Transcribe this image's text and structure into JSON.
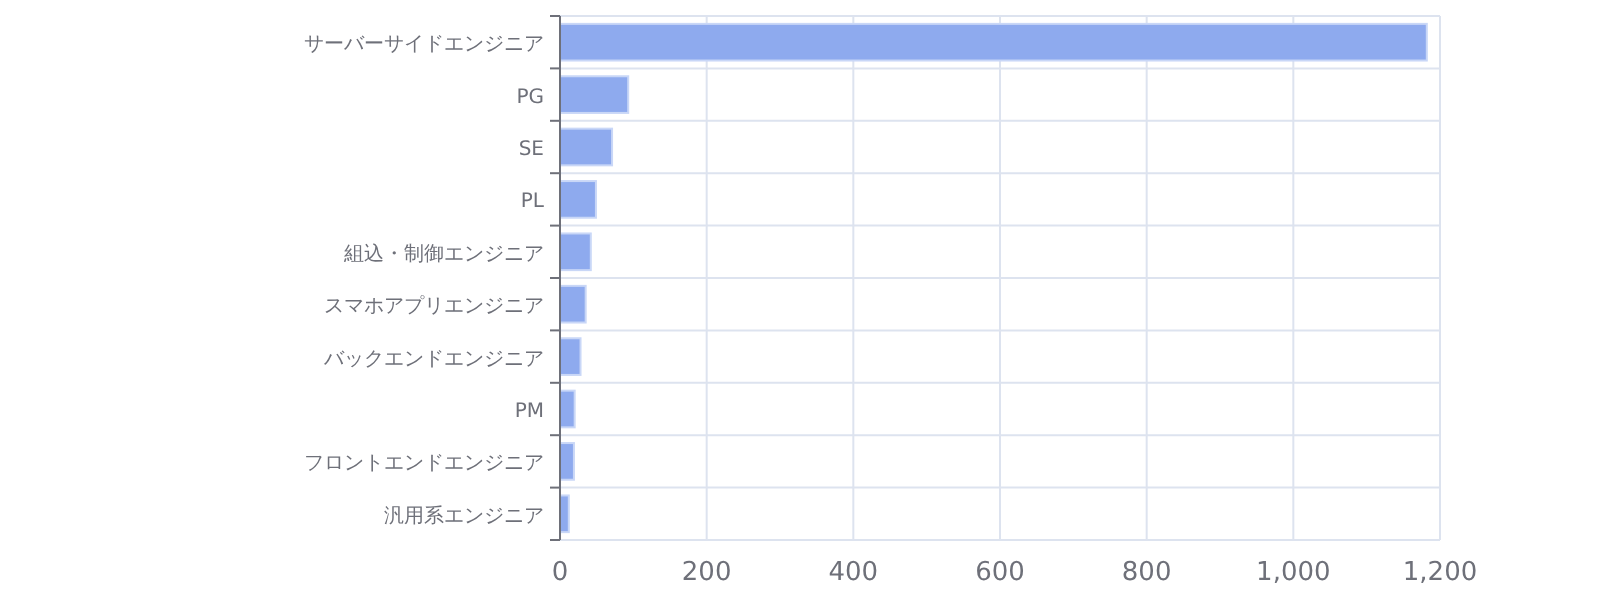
{
  "chart_data": {
    "type": "bar",
    "orientation": "horizontal",
    "categories": [
      "サーバーサイドエンジニア",
      "PG",
      "SE",
      "PL",
      "組込・制御エンジニア",
      "スマホアプリエンジニア",
      "バックエンドエンジニア",
      "PM",
      "フロントエンドエンジニア",
      "汎用系エンジニア"
    ],
    "values": [
      1182,
      93,
      71,
      49,
      42,
      35,
      28,
      20,
      19,
      12
    ],
    "color": "#8eaaee",
    "xlim": [
      0,
      1200
    ],
    "xticks": [
      0,
      {
        "value": 200,
        "label": "200"
      },
      {
        "value": 400,
        "label": "400"
      },
      {
        "value": 600,
        "label": "600"
      },
      {
        "value": 800,
        "label": "800"
      },
      {
        "value": 1000,
        "label": "1,000"
      },
      {
        "value": 1200,
        "label": "1,200"
      }
    ],
    "grid": true
  }
}
